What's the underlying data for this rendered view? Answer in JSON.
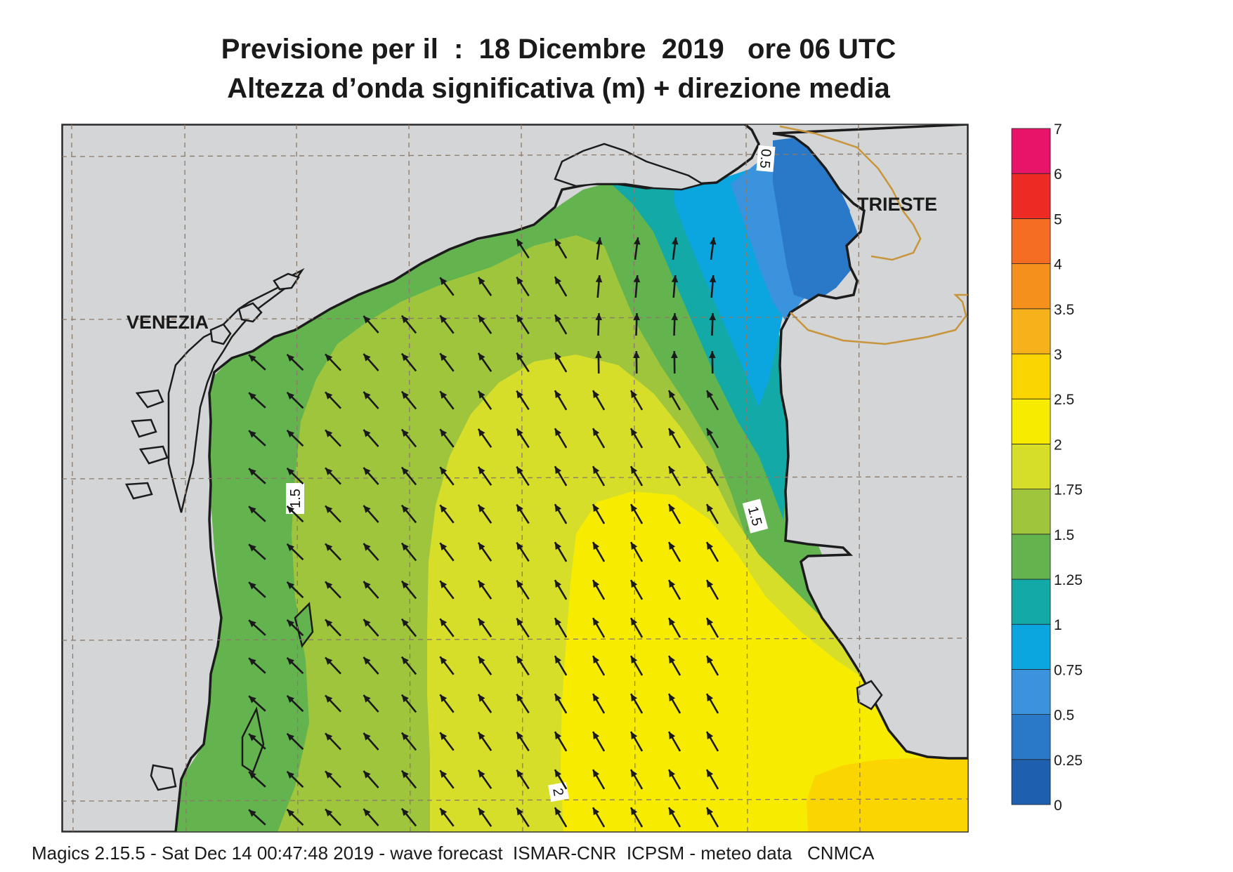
{
  "title_line1": "Previsione per il  :  18 Dicembre  2019   ore 06 UTC",
  "title_line2": "Altezza d’onda significativa (m) + direzione media",
  "footer": "Magics 2.15.5 - Sat Dec 14 00:47:48 2019 - wave forecast  ISMAR-CNR  ICPSM - meteo data   CNMCA",
  "cities": [
    {
      "name": "VENEZIA"
    },
    {
      "name": "TRIESTE"
    }
  ],
  "contour_labels": [
    "0.5",
    "1.5",
    "1.5",
    "2"
  ],
  "colorbar": {
    "levels": [
      "0",
      "0.25",
      "0.5",
      "0.75",
      "1",
      "1.25",
      "1.5",
      "1.75",
      "2",
      "2.5",
      "3",
      "3.5",
      "4",
      "5",
      "6",
      "7"
    ],
    "colors": [
      "#1f5fb0",
      "#2a78c8",
      "#3a93dc",
      "#0ba5e0",
      "#12a9a6",
      "#63b44f",
      "#9ec53c",
      "#d6de2a",
      "#f7ec00",
      "#fbd500",
      "#f7b11a",
      "#f6901c",
      "#f46d22",
      "#ee2a25",
      "#e8146a"
    ]
  },
  "map_colors": {
    "land": "#d4d5d6",
    "coast": "#1c1c1c",
    "grid": "#8a7a6a",
    "border": "#c8953a",
    "arrow": "#1a1a1a"
  }
}
